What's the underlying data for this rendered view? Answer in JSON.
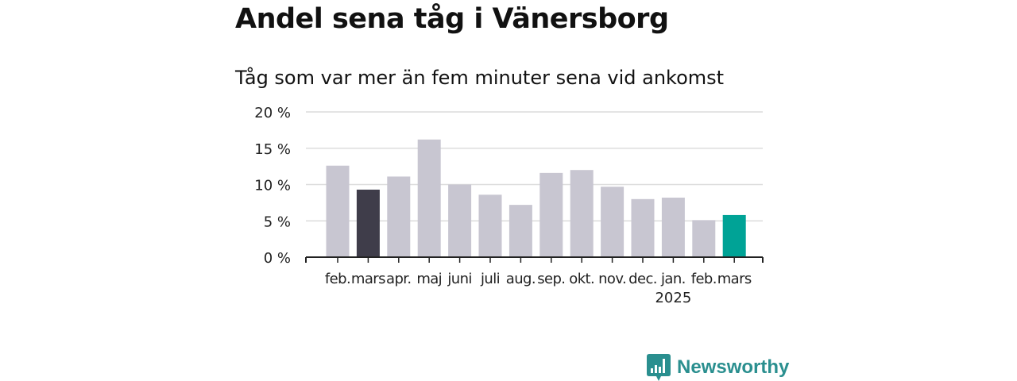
{
  "header": {
    "title": "Andel sena tåg i Vänersborg",
    "subtitle": "Tåg som var mer än fem minuter sena vid ankomst"
  },
  "chart_data": {
    "type": "bar",
    "categories": [
      "feb.",
      "mars",
      "apr.",
      "maj",
      "juni",
      "juli",
      "aug.",
      "sep.",
      "okt.",
      "nov.",
      "dec.",
      "jan.",
      "feb.",
      "mars"
    ],
    "year_label": {
      "text": "2025",
      "under_category_index": 11
    },
    "values": [
      12.6,
      9.3,
      11.1,
      16.2,
      10.0,
      8.6,
      7.2,
      11.6,
      12.0,
      9.7,
      8.0,
      8.2,
      5.1,
      5.8
    ],
    "ylim": [
      0,
      20
    ],
    "yticks": [
      0,
      5,
      10,
      15,
      20
    ],
    "ytick_labels": [
      "0 %",
      "5 %",
      "10 %",
      "15 %",
      "20 %"
    ],
    "xlabel": "",
    "ylabel": "",
    "grid": true,
    "colors": {
      "default": "#c8c6d1",
      "highlight_previous": "#3f3d4a",
      "highlight_current": "#00a396",
      "grid": "#dcdcdc",
      "axis": "#222222",
      "text": "#222222"
    },
    "highlight": {
      "1": "highlight_previous",
      "13": "highlight_current"
    }
  },
  "branding": {
    "logo_text": "Newsworthy",
    "logo_icon": "newsworthy-logo-icon",
    "color": "#2a8f8f"
  }
}
